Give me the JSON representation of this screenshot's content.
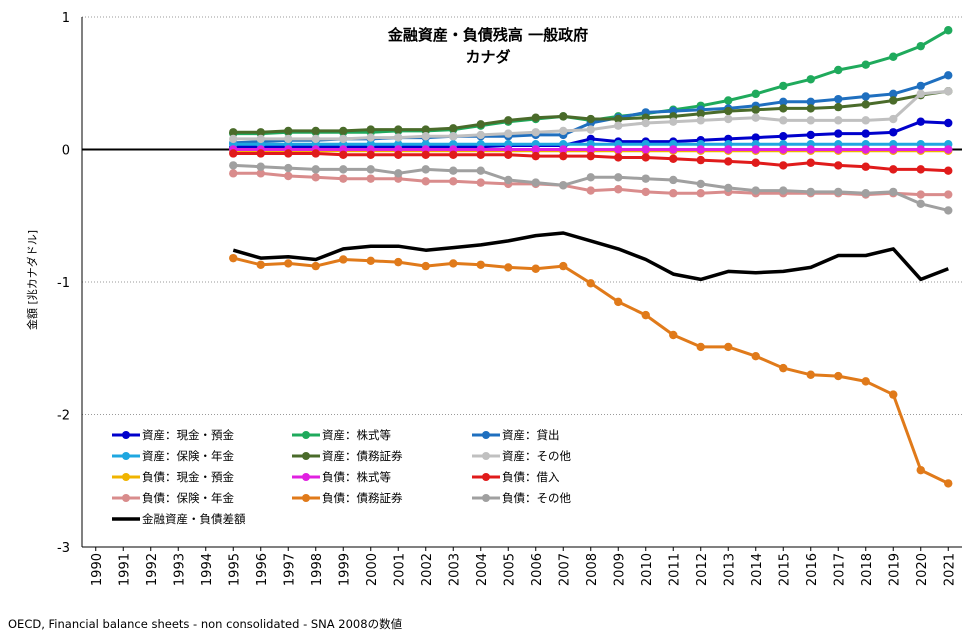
{
  "chart_data": {
    "type": "line",
    "title": "金融資産・負債残高 一般政府",
    "subtitle": "カナダ",
    "ylabel": "金額 [兆カナダドル]",
    "xlabel": "",
    "ylim": [
      -3,
      1
    ],
    "yticks": [
      "-3",
      "-2",
      "-1",
      "0",
      "1"
    ],
    "x": [
      "1990",
      "1991",
      "1992",
      "1993",
      "1994",
      "1995",
      "1996",
      "1997",
      "1998",
      "1999",
      "2000",
      "2001",
      "2002",
      "2003",
      "2004",
      "2005",
      "2006",
      "2007",
      "2008",
      "2009",
      "2010",
      "2011",
      "2012",
      "2013",
      "2014",
      "2015",
      "2016",
      "2017",
      "2018",
      "2019",
      "2020",
      "2021"
    ],
    "grid": "horizontal",
    "legend_position": "bottom-left",
    "source": "OECD, Financial balance sheets - non consolidated - SNA 2008の数値",
    "series": [
      {
        "name": "資産：現金・預金",
        "color": "#0000cc",
        "marker": true,
        "width": 3,
        "values": [
          null,
          null,
          null,
          null,
          null,
          0.02,
          0.02,
          0.02,
          0.02,
          0.02,
          0.02,
          0.02,
          0.02,
          0.02,
          0.02,
          0.03,
          0.03,
          0.03,
          0.08,
          0.06,
          0.06,
          0.06,
          0.07,
          0.08,
          0.09,
          0.1,
          0.11,
          0.12,
          0.12,
          0.13,
          0.21,
          0.2
        ]
      },
      {
        "name": "資産：株式等",
        "color": "#1faa5c",
        "marker": true,
        "width": 3,
        "values": [
          null,
          null,
          null,
          null,
          null,
          0.12,
          0.12,
          0.13,
          0.13,
          0.13,
          0.13,
          0.14,
          0.14,
          0.15,
          0.18,
          0.21,
          0.23,
          0.25,
          0.22,
          0.25,
          0.27,
          0.3,
          0.33,
          0.37,
          0.42,
          0.48,
          0.53,
          0.6,
          0.64,
          0.7,
          0.78,
          0.9
        ]
      },
      {
        "name": "資産：貸出",
        "color": "#1f6fbf",
        "marker": true,
        "width": 3,
        "values": [
          null,
          null,
          null,
          null,
          null,
          0.05,
          0.06,
          0.07,
          0.07,
          0.08,
          0.08,
          0.09,
          0.09,
          0.1,
          0.1,
          0.1,
          0.11,
          0.11,
          0.2,
          0.24,
          0.28,
          0.29,
          0.3,
          0.31,
          0.33,
          0.36,
          0.36,
          0.38,
          0.4,
          0.42,
          0.48,
          0.56
        ]
      },
      {
        "name": "資産：保険・年金",
        "color": "#1fa7e0",
        "marker": true,
        "width": 3,
        "values": [
          null,
          null,
          null,
          null,
          null,
          0.04,
          0.04,
          0.04,
          0.04,
          0.04,
          0.04,
          0.04,
          0.04,
          0.04,
          0.04,
          0.04,
          0.04,
          0.04,
          0.04,
          0.04,
          0.04,
          0.04,
          0.04,
          0.04,
          0.04,
          0.04,
          0.04,
          0.04,
          0.04,
          0.04,
          0.04,
          0.04
        ]
      },
      {
        "name": "資産：債務証券",
        "color": "#4a6b2a",
        "marker": true,
        "width": 3,
        "values": [
          null,
          null,
          null,
          null,
          null,
          0.13,
          0.13,
          0.14,
          0.14,
          0.14,
          0.15,
          0.15,
          0.15,
          0.16,
          0.19,
          0.22,
          0.24,
          0.25,
          0.23,
          0.23,
          0.24,
          0.25,
          0.27,
          0.29,
          0.3,
          0.31,
          0.31,
          0.32,
          0.34,
          0.37,
          0.41,
          0.44
        ]
      },
      {
        "name": "資産：その他",
        "color": "#c0c0c0",
        "marker": true,
        "width": 3,
        "values": [
          null,
          null,
          null,
          null,
          null,
          0.08,
          0.08,
          0.08,
          0.08,
          0.08,
          0.09,
          0.09,
          0.1,
          0.1,
          0.11,
          0.12,
          0.13,
          0.14,
          0.15,
          0.18,
          0.2,
          0.21,
          0.22,
          0.23,
          0.24,
          0.22,
          0.22,
          0.22,
          0.22,
          0.23,
          0.42,
          0.44
        ]
      },
      {
        "name": "負債：現金・預金",
        "color": "#f0b400",
        "marker": true,
        "width": 3,
        "values": [
          null,
          null,
          null,
          null,
          null,
          -0.01,
          -0.01,
          -0.01,
          -0.01,
          -0.01,
          -0.01,
          -0.01,
          -0.01,
          -0.01,
          -0.01,
          -0.01,
          -0.01,
          -0.01,
          -0.01,
          -0.01,
          -0.01,
          -0.01,
          -0.01,
          -0.01,
          -0.01,
          -0.01,
          -0.01,
          -0.01,
          -0.01,
          -0.01,
          -0.01,
          -0.01
        ]
      },
      {
        "name": "負債：株式等",
        "color": "#e020e0",
        "marker": true,
        "width": 3,
        "values": [
          null,
          null,
          null,
          null,
          null,
          0.0,
          0.0,
          0.0,
          0.0,
          0.0,
          0.0,
          0.0,
          0.0,
          0.0,
          0.0,
          0.0,
          0.0,
          0.0,
          0.0,
          0.0,
          0.0,
          0.0,
          0.0,
          0.0,
          0.0,
          0.0,
          0.0,
          0.0,
          0.0,
          0.0,
          0.0,
          0.0
        ]
      },
      {
        "name": "負債：借入",
        "color": "#e01b1b",
        "marker": true,
        "width": 3,
        "values": [
          null,
          null,
          null,
          null,
          null,
          -0.03,
          -0.03,
          -0.03,
          -0.03,
          -0.04,
          -0.04,
          -0.04,
          -0.04,
          -0.04,
          -0.04,
          -0.04,
          -0.05,
          -0.05,
          -0.05,
          -0.06,
          -0.06,
          -0.07,
          -0.08,
          -0.09,
          -0.1,
          -0.12,
          -0.1,
          -0.12,
          -0.13,
          -0.15,
          -0.15,
          -0.16
        ]
      },
      {
        "name": "負債：保険・年金",
        "color": "#d98c8c",
        "marker": true,
        "width": 3,
        "values": [
          null,
          null,
          null,
          null,
          null,
          -0.18,
          -0.18,
          -0.2,
          -0.21,
          -0.22,
          -0.22,
          -0.22,
          -0.24,
          -0.24,
          -0.25,
          -0.26,
          -0.26,
          -0.27,
          -0.31,
          -0.3,
          -0.32,
          -0.33,
          -0.33,
          -0.32,
          -0.33,
          -0.33,
          -0.33,
          -0.33,
          -0.34,
          -0.33,
          -0.34,
          -0.34
        ]
      },
      {
        "name": "負債：債務証券",
        "color": "#e07a1a",
        "marker": true,
        "width": 3,
        "values": [
          null,
          null,
          null,
          null,
          null,
          -0.82,
          -0.87,
          -0.86,
          -0.88,
          -0.83,
          -0.84,
          -0.85,
          -0.88,
          -0.86,
          -0.87,
          -0.89,
          -0.9,
          -0.88,
          -1.01,
          -1.15,
          -1.25,
          -1.4,
          -1.49,
          -1.49,
          -1.56,
          -1.65,
          -1.7,
          -1.71,
          -1.75,
          -1.85,
          -2.42,
          -2.52
        ]
      },
      {
        "name": "負債：その他",
        "color": "#a0a0a0",
        "marker": true,
        "width": 3,
        "values": [
          null,
          null,
          null,
          null,
          null,
          -0.12,
          -0.13,
          -0.14,
          -0.15,
          -0.15,
          -0.15,
          -0.18,
          -0.15,
          -0.16,
          -0.16,
          -0.23,
          -0.25,
          -0.27,
          -0.21,
          -0.21,
          -0.22,
          -0.23,
          -0.26,
          -0.29,
          -0.31,
          -0.31,
          -0.32,
          -0.32,
          -0.33,
          -0.32,
          -0.41,
          -0.46
        ]
      },
      {
        "name": "金融資産・負債差額",
        "color": "#000000",
        "marker": false,
        "width": 3.5,
        "values": [
          null,
          null,
          null,
          null,
          null,
          -0.76,
          -0.82,
          -0.81,
          -0.83,
          -0.75,
          -0.73,
          -0.73,
          -0.76,
          -0.74,
          -0.72,
          -0.69,
          -0.65,
          -0.63,
          -0.69,
          -0.75,
          -0.83,
          -0.94,
          -0.98,
          -0.92,
          -0.93,
          -0.92,
          -0.89,
          -0.8,
          -0.8,
          -0.75,
          -0.98,
          -0.9
        ]
      }
    ]
  }
}
